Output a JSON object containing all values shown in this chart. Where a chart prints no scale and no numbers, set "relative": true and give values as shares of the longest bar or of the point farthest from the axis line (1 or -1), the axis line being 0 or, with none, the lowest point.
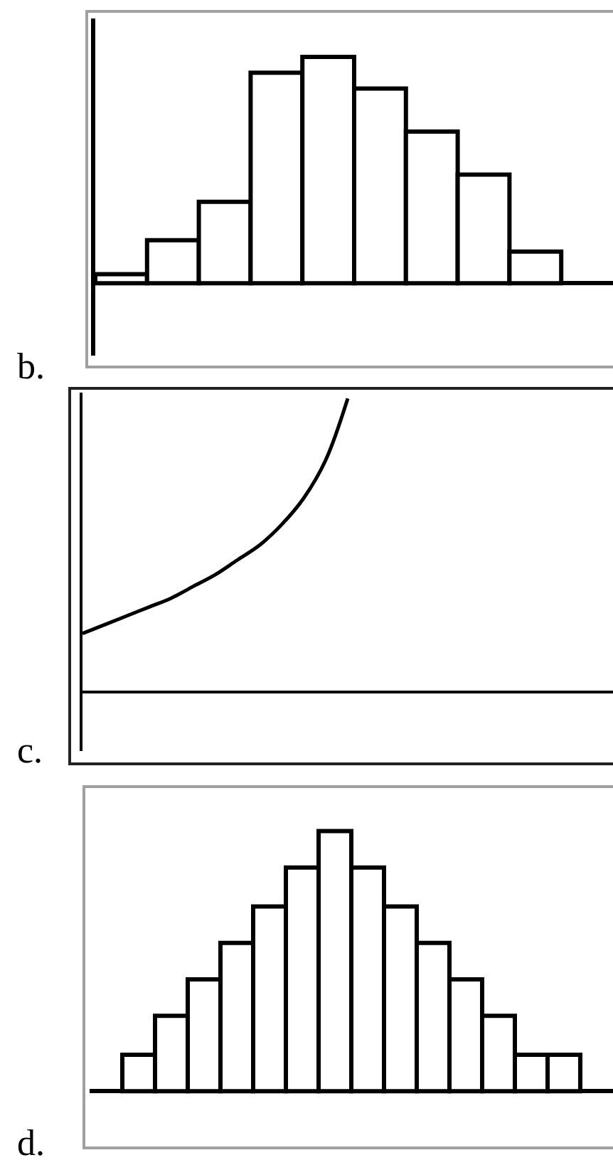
{
  "chart_data": [
    {
      "type": "bar",
      "title": "b.",
      "categories": [
        null,
        null,
        null,
        null,
        null,
        null,
        null,
        null,
        null
      ],
      "values": [
        0.04,
        0.19,
        0.36,
        0.93,
        1,
        0.86,
        0.67,
        0.48,
        0.14
      ],
      "color": "#ffffff",
      "relative": true
    },
    {
      "type": "line",
      "title": "c.",
      "categories": [
        null,
        null,
        null,
        null,
        null,
        null,
        null,
        null,
        null,
        null,
        null,
        null,
        null,
        null,
        null,
        null,
        null,
        null,
        null,
        null,
        null,
        null,
        null,
        null,
        null
      ],
      "values": [
        0.2,
        0.23,
        0.26,
        0.29,
        0.32,
        0.36,
        0.4,
        0.45,
        0.5,
        0.57,
        0.66,
        0.79,
        1,
        null,
        null,
        null,
        null,
        null,
        null,
        null,
        null,
        null,
        null,
        null,
        null
      ],
      "color": "#000000",
      "relative": true
    },
    {
      "type": "bar",
      "title": "d.",
      "categories": [
        null,
        null,
        null,
        null,
        null,
        null,
        null,
        null,
        null,
        null,
        null,
        null,
        null,
        null
      ],
      "values": [
        0.14,
        0.29,
        0.43,
        0.57,
        0.71,
        0.86,
        1,
        0.86,
        0.71,
        0.57,
        0.43,
        0.29,
        0.14,
        0.14
      ],
      "color": "#ffffff",
      "relative": true
    }
  ]
}
